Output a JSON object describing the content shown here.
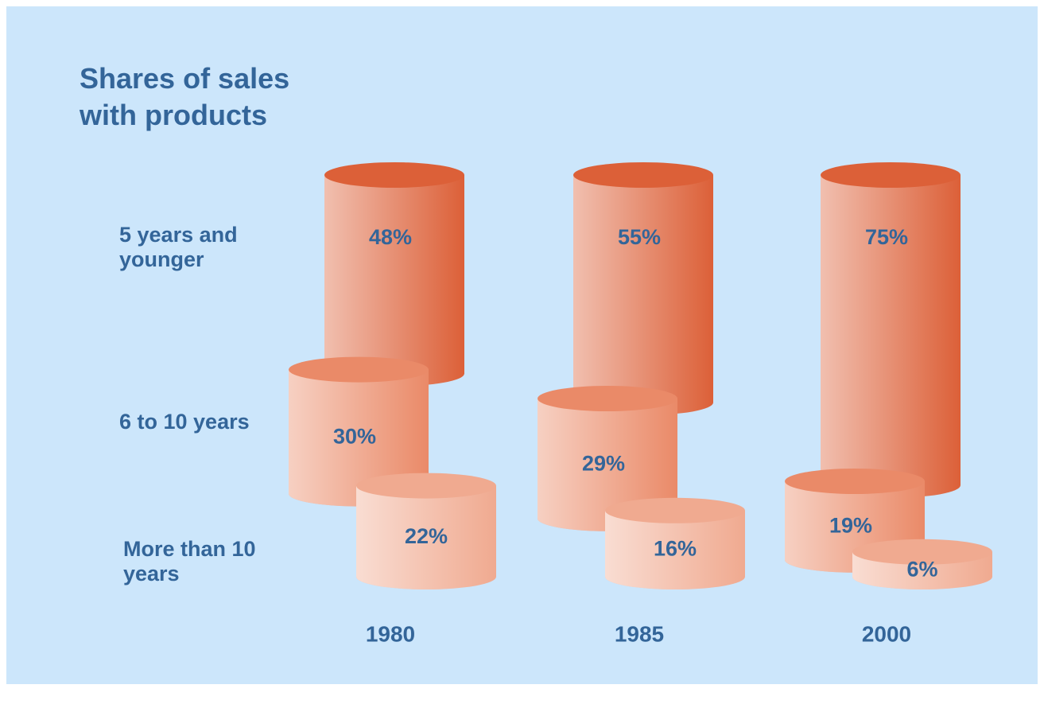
{
  "chart_data": {
    "type": "cylinder",
    "title": "Shares of sales with products",
    "categories": [
      "1980",
      "1985",
      "2000"
    ],
    "series": [
      {
        "name": "5 years and younger",
        "color": "#dc6038",
        "values": [
          48,
          55,
          75
        ],
        "value_labels": [
          "48%",
          "55%",
          "75%"
        ]
      },
      {
        "name": "6 to 10 years",
        "color": "#ea8a68",
        "values": [
          30,
          29,
          19
        ],
        "value_labels": [
          "30%",
          "29%",
          "19%"
        ]
      },
      {
        "name": "More than 10 years",
        "color": "#f0aa90",
        "values": [
          22,
          16,
          6
        ],
        "value_labels": [
          "22%",
          "16%",
          "6%"
        ]
      }
    ]
  }
}
